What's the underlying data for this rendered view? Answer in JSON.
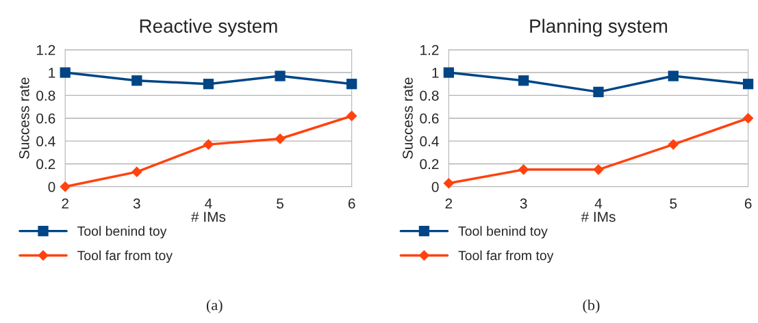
{
  "chart_data": [
    {
      "type": "line",
      "title": "Reactive system",
      "xlabel": "# IMs",
      "ylabel": "Success rate",
      "categories": [
        "2",
        "3",
        "4",
        "5",
        "6"
      ],
      "series": [
        {
          "name": "Tool benind toy",
          "color": "#004586",
          "marker": "square",
          "values": [
            1.0,
            0.93,
            0.9,
            0.97,
            0.9
          ]
        },
        {
          "name": "Tool far from toy",
          "color": "#ff420e",
          "marker": "diamond",
          "values": [
            0.0,
            0.13,
            0.37,
            0.42,
            0.62
          ]
        }
      ],
      "ylim": [
        0,
        1.2
      ],
      "yticks": [
        0,
        0.2,
        0.4,
        0.6,
        0.8,
        1,
        1.2
      ],
      "grid": "y",
      "legend": "bottom left",
      "annotations": [
        "(a)"
      ]
    },
    {
      "type": "line",
      "title": "Planning system",
      "xlabel": "# IMs",
      "ylabel": "Success rate",
      "categories": [
        "2",
        "3",
        "4",
        "5",
        "6"
      ],
      "series": [
        {
          "name": "Tool benind toy",
          "color": "#004586",
          "marker": "square",
          "values": [
            1.0,
            0.93,
            0.83,
            0.97,
            0.9
          ]
        },
        {
          "name": "Tool far from toy",
          "color": "#ff420e",
          "marker": "diamond",
          "values": [
            0.03,
            0.15,
            0.15,
            0.37,
            0.6
          ]
        }
      ],
      "ylim": [
        0,
        1.2
      ],
      "yticks": [
        0,
        0.2,
        0.4,
        0.6,
        0.8,
        1,
        1.2
      ],
      "grid": "y",
      "legend": "bottom left",
      "annotations": [
        "(b)"
      ]
    }
  ]
}
